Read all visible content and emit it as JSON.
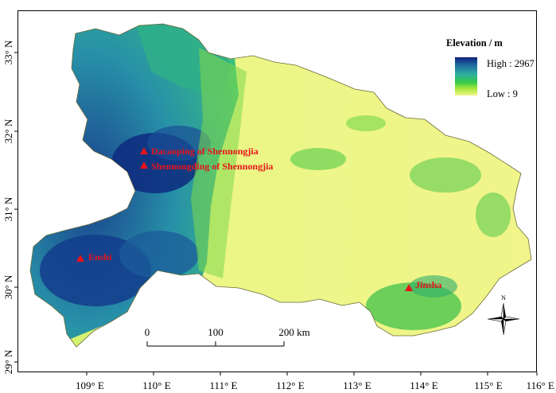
{
  "map": {
    "longitude_ticks": [
      "109° E",
      "110° E",
      "111° E",
      "112° E",
      "113° E",
      "114° E",
      "115° E",
      "116° E"
    ],
    "latitude_ticks": [
      "33° N",
      "32° N",
      "31° N",
      "30° N",
      "29° N"
    ],
    "legend": {
      "title": "Elevation / m",
      "high_label": "High : 2967",
      "low_label": "Low : 9",
      "colors": [
        "#0c1f7a",
        "#1f6fa0",
        "#2fb0a0",
        "#33c84a",
        "#a6e83a",
        "#f1f58a"
      ]
    },
    "sites": [
      {
        "name": "Dacaoping of Shennongjia"
      },
      {
        "name": "Shennongding of Shennongjia"
      },
      {
        "name": "Enshi"
      },
      {
        "name": "Jinsha"
      }
    ],
    "scale_bar": {
      "ticks": [
        "0",
        "100",
        "200 km"
      ]
    },
    "north_arrow": {
      "label": "N"
    },
    "marker_color": "#e8131a"
  }
}
